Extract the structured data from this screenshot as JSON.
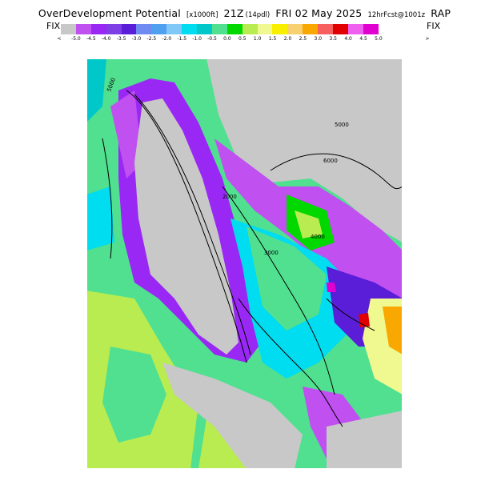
{
  "title": {
    "prefix": "OverDevelopment Potential",
    "units": "[x1000ft]",
    "valid": "21Z",
    "level": "(14pdl)",
    "date": "FRI 02 May 2025",
    "forecast": "12hrFcst@1001z",
    "model": "RAP"
  },
  "colorbar": {
    "left_label": "FIX",
    "right_label": "FIX",
    "under_symbol": "<",
    "over_symbol": ">",
    "ticks": [
      "-5.0",
      "-4.5",
      "-4.0",
      "-3.5",
      "-3.0",
      "-2.5",
      "-2.0",
      "-1.5",
      "-1.0",
      "-0.5",
      "0.0",
      "0.5",
      "1.0",
      "1.5",
      "2.0",
      "2.5",
      "3.0",
      "3.5",
      "4.0",
      "4.5",
      "5.0"
    ],
    "colors": [
      "#c8c8c8",
      "#c050f0",
      "#9a28f5",
      "#7f3fe6",
      "#5a1ed8",
      "#6f8af0",
      "#50a0f0",
      "#80c8f8",
      "#00dcf0",
      "#00c8c8",
      "#50e090",
      "#00d800",
      "#b8ec50",
      "#f0f890",
      "#f8f000",
      "#f8d070",
      "#f8a800",
      "#f86060",
      "#e00000",
      "#f060f0",
      "#e000d0"
    ]
  },
  "map": {
    "contour_labels": [
      "5000",
      "5000",
      "6000",
      "2000",
      "3000",
      "4000"
    ],
    "colors": {
      "grey": "#c8c8c8",
      "purple": "#9a28f5",
      "violet": "#c050f0",
      "blue": "#5a1ed8",
      "cyan": "#00dcf0",
      "teal": "#00c8c8",
      "green": "#50e090",
      "brightgreen": "#00d800",
      "lime": "#b8ec50",
      "yellow": "#f0f890",
      "orange": "#f8a800",
      "red": "#e00000",
      "magenta": "#e000d0"
    }
  }
}
